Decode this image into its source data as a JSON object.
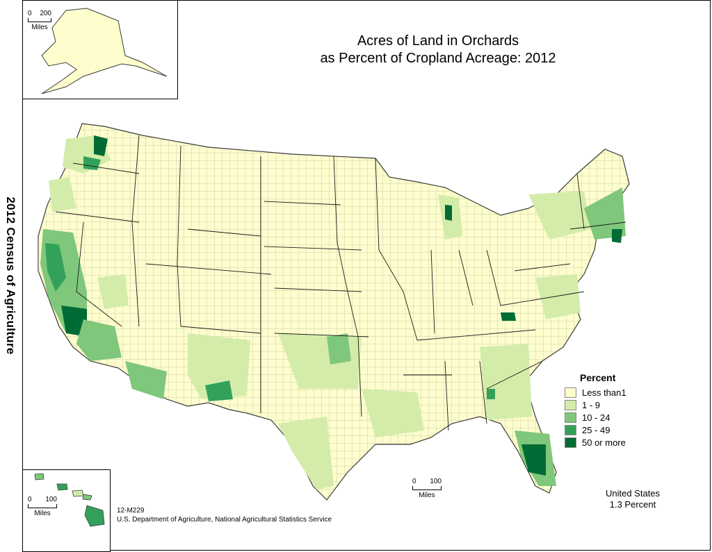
{
  "side_title": "2012 Census of Agriculture",
  "title_line1": "Acres of Land in Orchards",
  "title_line2": "as Percent of Cropland Acreage:  2012",
  "colors": {
    "less_than_1": "#fdfdcd",
    "c1_9": "#d4ecaa",
    "c10_24": "#7fc77b",
    "c25_49": "#33a15a",
    "c50_more": "#006b35",
    "border": "#3a3a3a"
  },
  "legend": {
    "title": "Percent",
    "items": [
      {
        "label": "Less than1",
        "color": "#fdfdcd"
      },
      {
        "label": "1 - 9",
        "color": "#d4ecaa"
      },
      {
        "label": "10 - 24",
        "color": "#7fc77b"
      },
      {
        "label": "25 - 49",
        "color": "#33a15a"
      },
      {
        "label": "50 or more",
        "color": "#006b35"
      }
    ]
  },
  "alaska_scale": {
    "start": "0",
    "end": "200",
    "unit": "Miles"
  },
  "hawaii_scale": {
    "start": "0",
    "end": "100",
    "unit": "Miles"
  },
  "main_scale": {
    "start": "0",
    "end": "100",
    "unit": "Miles"
  },
  "us_total": {
    "line1": "United States",
    "line2": "1.3 Percent"
  },
  "footer": {
    "code": "12-M229",
    "agency": "U.S. Department of Agriculture, National Agricultural Statistics Service"
  }
}
